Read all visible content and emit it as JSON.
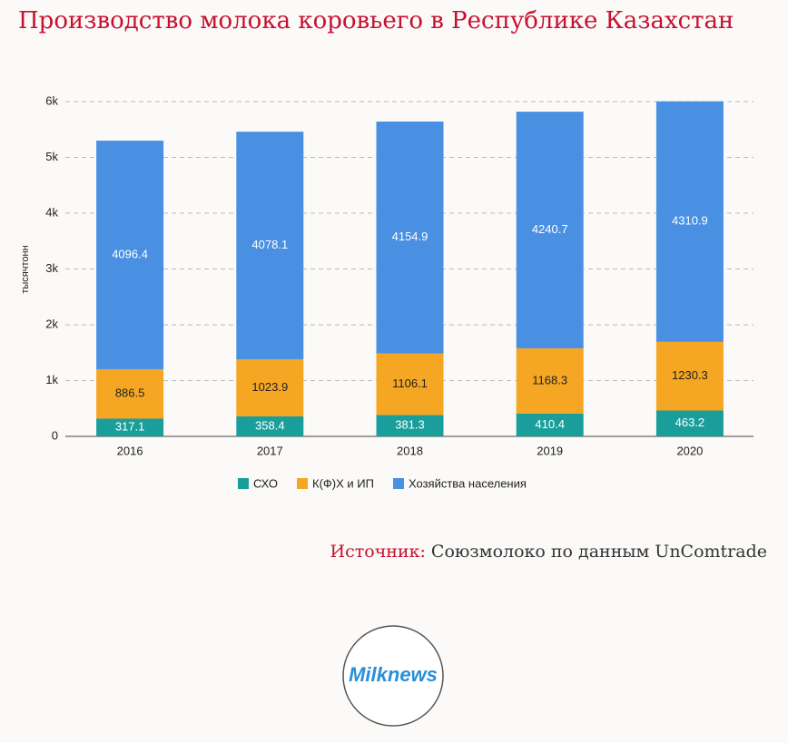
{
  "chart_data": {
    "type": "stacked_bar",
    "title": "Производство молока коровьего в Республике Казахстан",
    "y_label": "тысячтонн",
    "categories": [
      "2016",
      "2017",
      "2018",
      "2019",
      "2020"
    ],
    "series": [
      {
        "name": "СХО",
        "color": "#1a9e9b",
        "values": [
          317.1,
          358.4,
          381.3,
          410.4,
          463.2
        ]
      },
      {
        "name": "К(Ф)Х и ИП",
        "color": "#f5a623",
        "values": [
          886.5,
          1023.9,
          1106.1,
          1168.3,
          1230.3
        ]
      },
      {
        "name": "Хозяйства населения",
        "color": "#4a90e2",
        "values": [
          4096.4,
          4078.1,
          4154.9,
          4240.7,
          4310.9
        ]
      }
    ],
    "ylim": [
      0,
      6000
    ],
    "yticks": [
      0,
      {
        "value": 1000,
        "label": "1k"
      },
      {
        "value": 2000,
        "label": "2k"
      },
      {
        "value": 3000,
        "label": "3k"
      },
      {
        "value": 4000,
        "label": "4k"
      },
      {
        "value": 5000,
        "label": "5k"
      },
      {
        "value": 6000,
        "label": "6k"
      }
    ],
    "grid": true,
    "legend": "bottom"
  },
  "source": {
    "label": "Источник:",
    "text": "Союзмолоко по данным UnComtrade"
  },
  "logo": "Milknews"
}
